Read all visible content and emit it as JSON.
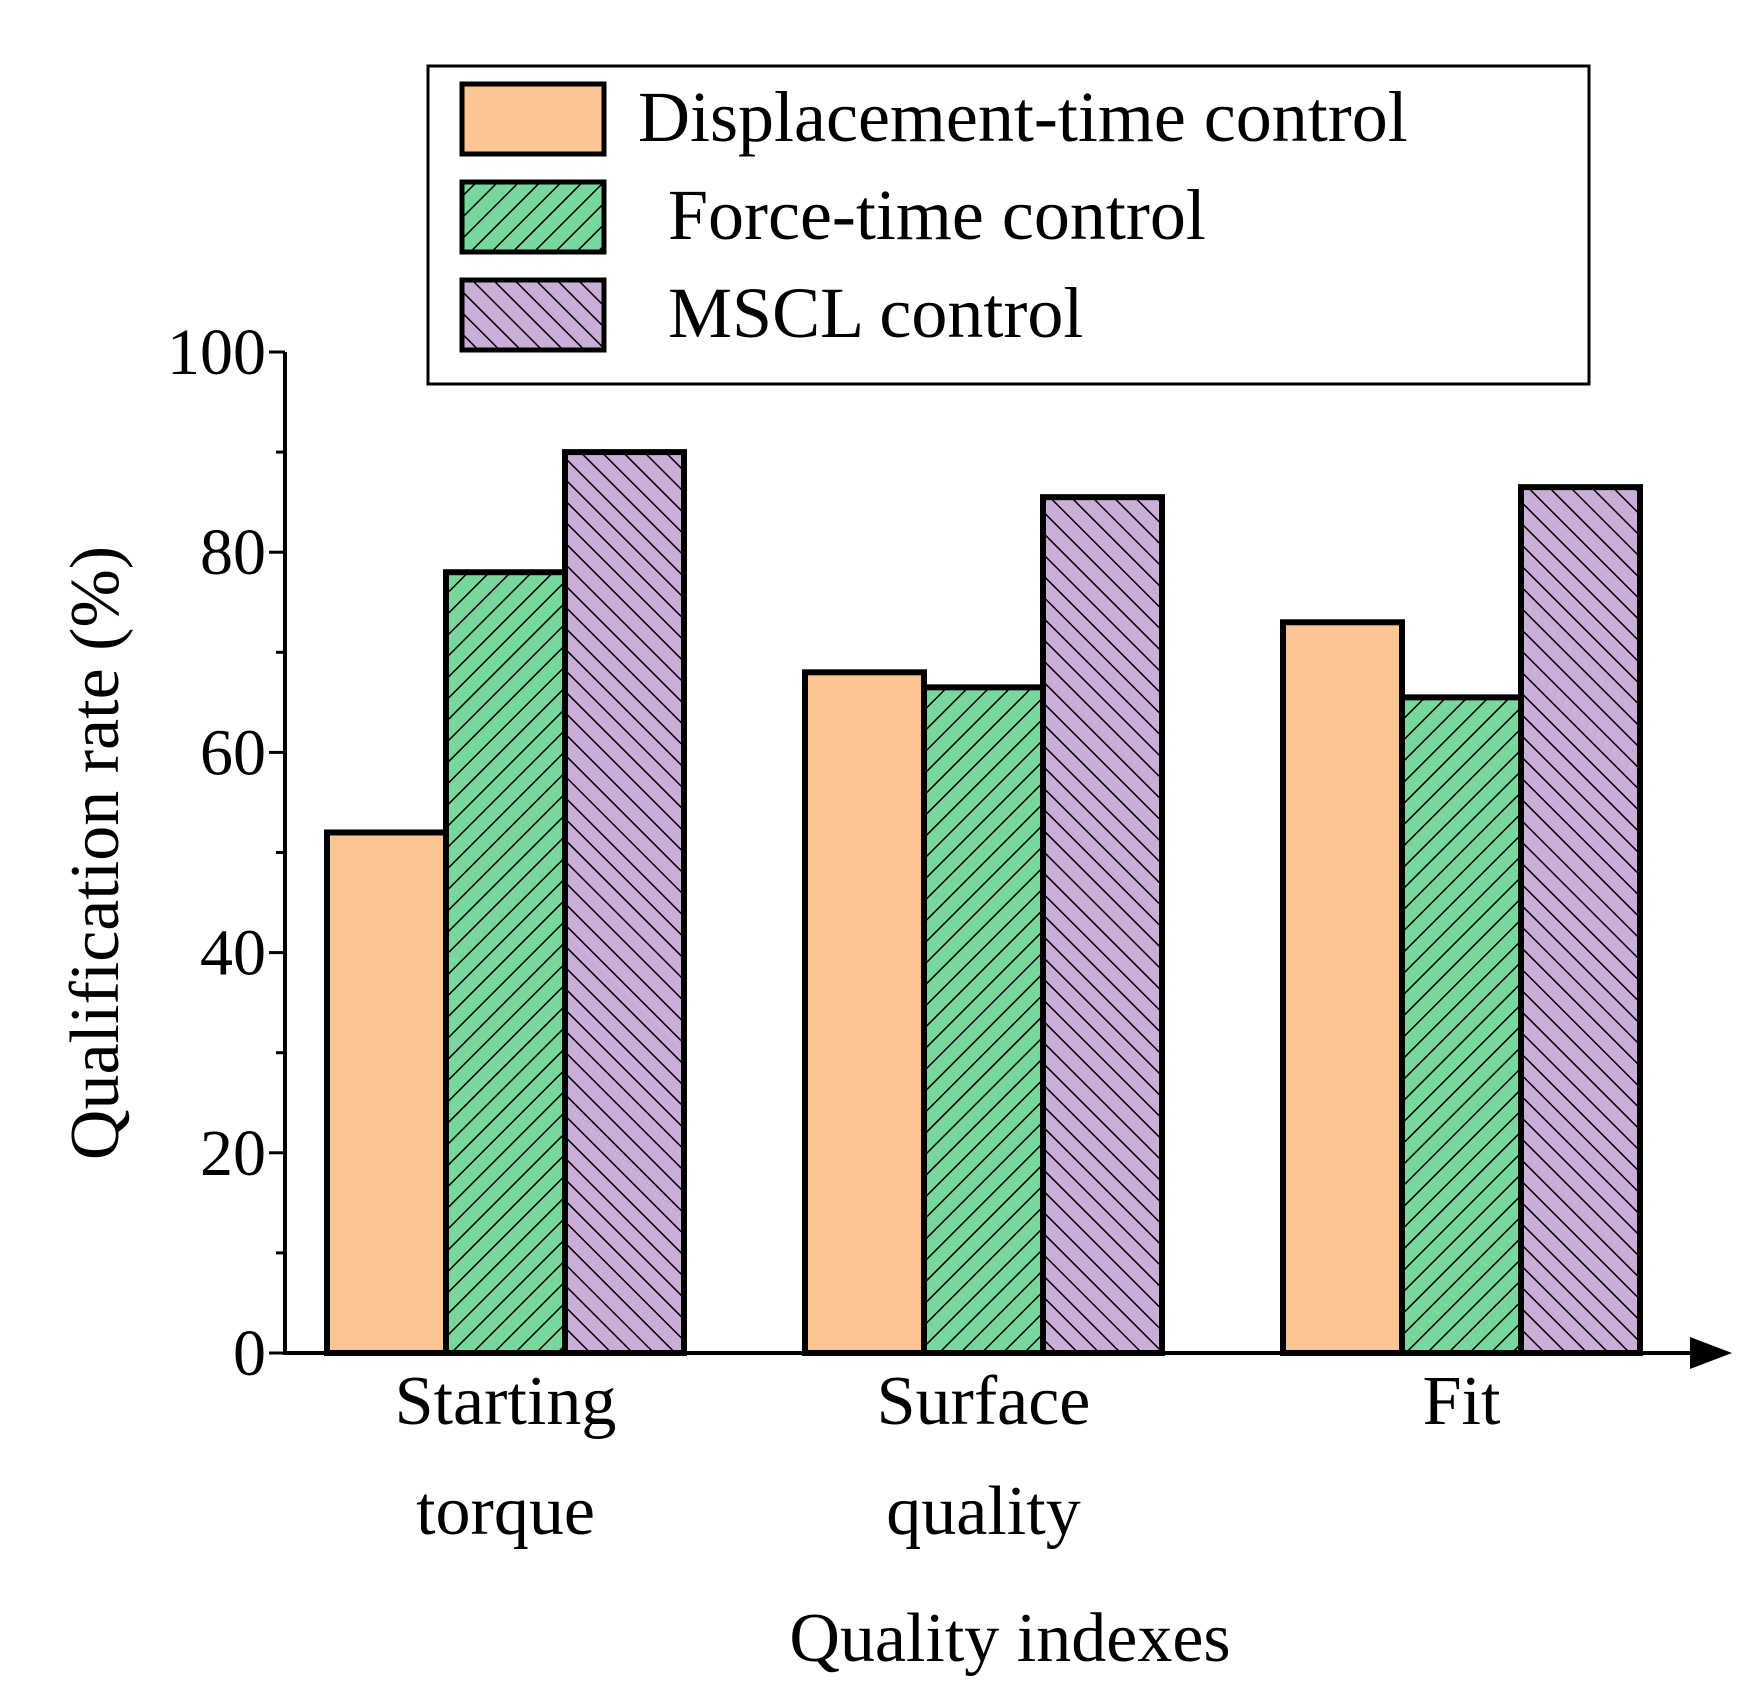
{
  "chart_data": {
    "type": "bar",
    "title": "",
    "xlabel": "Quality indexes",
    "ylabel": "Qualification rate (%)",
    "ylim": [
      0,
      100
    ],
    "yticks": [
      "0",
      "20",
      "40",
      "60",
      "80",
      "100"
    ],
    "categories": [
      [
        "Starting",
        "torque"
      ],
      [
        "Surface",
        "quality"
      ],
      [
        "Fit"
      ]
    ],
    "series": [
      {
        "name": "Displacement-time control",
        "values": [
          52,
          68,
          73
        ],
        "color": "#FDC593",
        "pattern": "none"
      },
      {
        "name": "Force-time control",
        "values": [
          78,
          66.5,
          65.5
        ],
        "color": "#78D79C",
        "pattern": "forward-hatch"
      },
      {
        "name": "MSCL control",
        "values": [
          90,
          85.5,
          86.5
        ],
        "color": "#C9AFD8",
        "pattern": "back-hatch"
      }
    ],
    "legend_position": "top-right",
    "grid": false,
    "x_axis_arrow": true
  }
}
